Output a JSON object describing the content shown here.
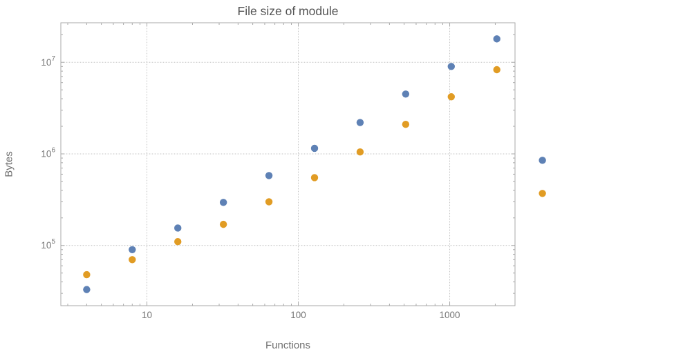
{
  "chart_data": {
    "type": "scatter",
    "title": "File size of module",
    "xlabel": "Functions",
    "ylabel": "Bytes",
    "x_scale": "log",
    "y_scale": "log",
    "xlim": [
      2.7,
      2700
    ],
    "ylim": [
      22000,
      27000000
    ],
    "grid": true,
    "grid_style": "dotted",
    "legend": "none",
    "x": [
      4,
      8,
      16,
      32,
      64,
      128,
      256,
      512,
      1024,
      2048,
      4096
    ],
    "series": [
      {
        "name": "blue",
        "color": "#5e81b5",
        "values": [
          33000,
          90000,
          155000,
          295000,
          580000,
          1150000,
          2200000,
          4500000,
          9000000,
          18000000,
          850000
        ]
      },
      {
        "name": "orange",
        "color": "#e19c24",
        "values": [
          48000,
          70000,
          110000,
          170000,
          300000,
          550000,
          1050000,
          2100000,
          4200000,
          8300000,
          370000
        ]
      }
    ],
    "x_ticks": [
      {
        "value": 10,
        "label": "10"
      },
      {
        "value": 100,
        "label": "100"
      },
      {
        "value": 1000,
        "label": "1000"
      }
    ],
    "y_ticks": [
      {
        "value": 100000,
        "base": "10",
        "exponent": "5"
      },
      {
        "value": 1000000,
        "base": "10",
        "exponent": "6"
      },
      {
        "value": 10000000,
        "base": "10",
        "exponent": "7"
      }
    ]
  },
  "colors": {
    "background": "#ffffff",
    "frame": "#a9a9a9",
    "tick": "#a9a9a9",
    "grid": "#c2c2c2",
    "title_text": "#545454",
    "tick_text": "#757575",
    "axis_label_text": "#6f6f6f"
  }
}
